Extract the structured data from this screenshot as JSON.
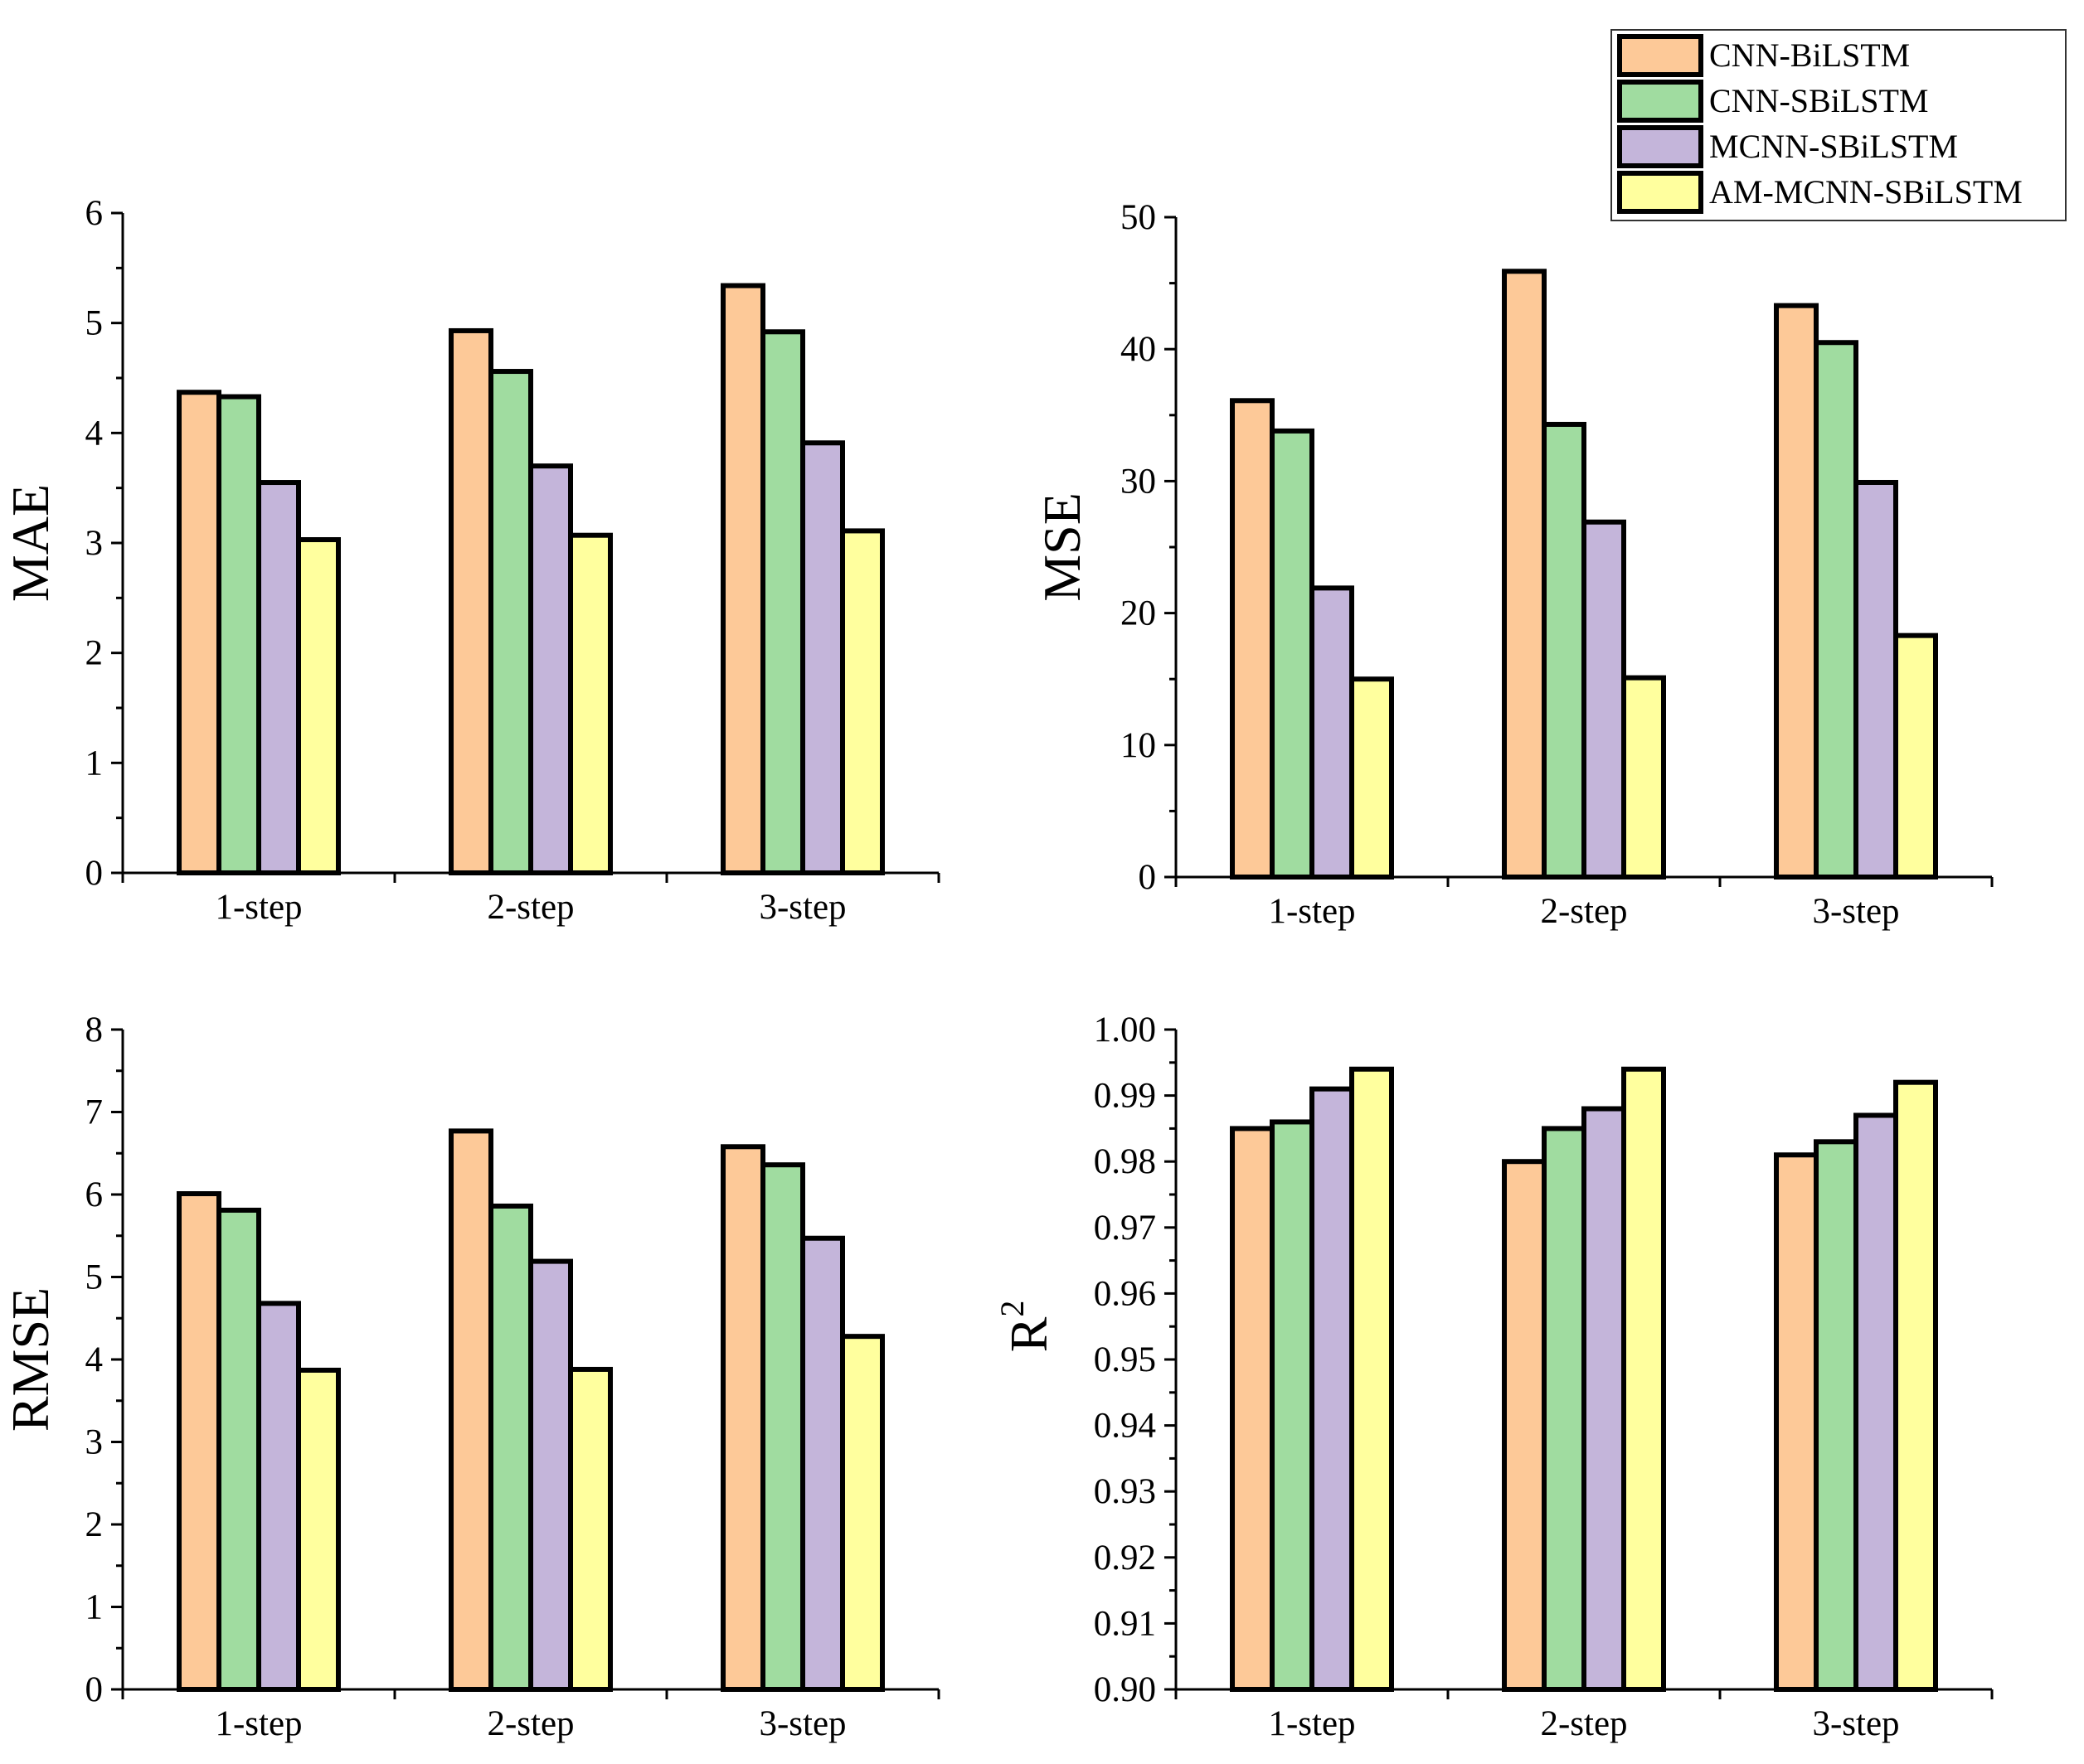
{
  "legend": {
    "series": [
      {
        "name": "CNN-BiLSTM",
        "color": "#FDC998"
      },
      {
        "name": "CNN-SBiLSTM",
        "color": "#A0DCA0"
      },
      {
        "name": "MCNN-SBiLSTM",
        "color": "#C4B5DA"
      },
      {
        "name": "AM-MCNN-SBiLSTM",
        "color": "#FFFF9E"
      }
    ]
  },
  "chart_data": [
    {
      "type": "bar",
      "title": "",
      "xlabel": "",
      "ylabel": "MAE",
      "categories": [
        "1-step",
        "2-step",
        "3-step"
      ],
      "ylim": [
        0,
        6
      ],
      "yticks": [
        "0",
        "1",
        "2",
        "3",
        "4",
        "5",
        "6"
      ],
      "series": [
        {
          "name": "CNN-BiLSTM",
          "values": [
            4.37,
            4.93,
            5.34
          ]
        },
        {
          "name": "CNN-SBiLSTM",
          "values": [
            4.33,
            4.56,
            4.92
          ]
        },
        {
          "name": "MCNN-SBiLSTM",
          "values": [
            3.55,
            3.7,
            3.91
          ]
        },
        {
          "name": "AM-MCNN-SBiLSTM",
          "values": [
            3.03,
            3.07,
            3.11
          ]
        }
      ]
    },
    {
      "type": "bar",
      "title": "",
      "xlabel": "",
      "ylabel": "MSE",
      "categories": [
        "1-step",
        "2-step",
        "3-step"
      ],
      "ylim": [
        0,
        50
      ],
      "yticks": [
        "0",
        "10",
        "20",
        "30",
        "40",
        "50"
      ],
      "series": [
        {
          "name": "CNN-BiLSTM",
          "values": [
            36.1,
            45.9,
            43.3
          ]
        },
        {
          "name": "CNN-SBiLSTM",
          "values": [
            33.8,
            34.3,
            40.5
          ]
        },
        {
          "name": "MCNN-SBiLSTM",
          "values": [
            21.9,
            26.9,
            29.9
          ]
        },
        {
          "name": "AM-MCNN-SBiLSTM",
          "values": [
            15.0,
            15.1,
            18.3
          ]
        }
      ]
    },
    {
      "type": "bar",
      "title": "",
      "xlabel": "",
      "ylabel": "RMSE",
      "categories": [
        "1-step",
        "2-step",
        "3-step"
      ],
      "ylim": [
        0,
        8
      ],
      "yticks": [
        "0",
        "1",
        "2",
        "3",
        "4",
        "5",
        "6",
        "7",
        "8"
      ],
      "series": [
        {
          "name": "CNN-BiLSTM",
          "values": [
            6.01,
            6.77,
            6.58
          ]
        },
        {
          "name": "CNN-SBiLSTM",
          "values": [
            5.81,
            5.86,
            6.36
          ]
        },
        {
          "name": "MCNN-SBiLSTM",
          "values": [
            4.68,
            5.19,
            5.47
          ]
        },
        {
          "name": "AM-MCNN-SBiLSTM",
          "values": [
            3.87,
            3.88,
            4.28
          ]
        }
      ]
    },
    {
      "type": "bar",
      "title": "",
      "xlabel": "",
      "ylabel": "R",
      "ylabel_superscript": "2",
      "categories": [
        "1-step",
        "2-step",
        "3-step"
      ],
      "ylim": [
        0.9,
        1.0
      ],
      "yticks": [
        "0.90",
        "0.91",
        "0.92",
        "0.93",
        "0.94",
        "0.95",
        "0.96",
        "0.97",
        "0.98",
        "0.99",
        "1.00"
      ],
      "series": [
        {
          "name": "CNN-BiLSTM",
          "values": [
            0.985,
            0.98,
            0.981
          ]
        },
        {
          "name": "CNN-SBiLSTM",
          "values": [
            0.986,
            0.985,
            0.983
          ]
        },
        {
          "name": "MCNN-SBiLSTM",
          "values": [
            0.991,
            0.988,
            0.987
          ]
        },
        {
          "name": "AM-MCNN-SBiLSTM",
          "values": [
            0.994,
            0.994,
            0.992
          ]
        }
      ]
    }
  ]
}
